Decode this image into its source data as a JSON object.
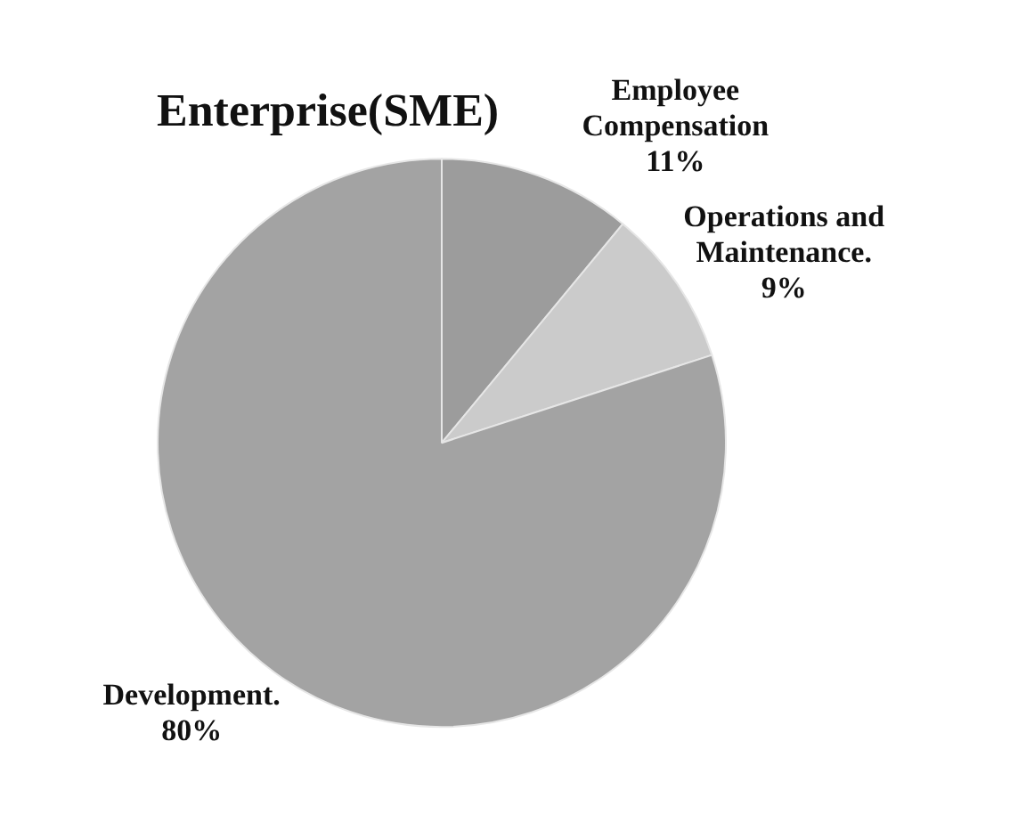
{
  "chart_data": {
    "type": "pie",
    "title": "Enterprise(SME)",
    "categories": [
      "Employee Compensation",
      "Operations and Maintenance.",
      "Development."
    ],
    "values": [
      11,
      9,
      80
    ],
    "colors": [
      "#9c9c9c",
      "#cbcbcb",
      "#a3a3a3"
    ],
    "value_labels": [
      "11%",
      "9%",
      "80%"
    ],
    "legend": false
  }
}
